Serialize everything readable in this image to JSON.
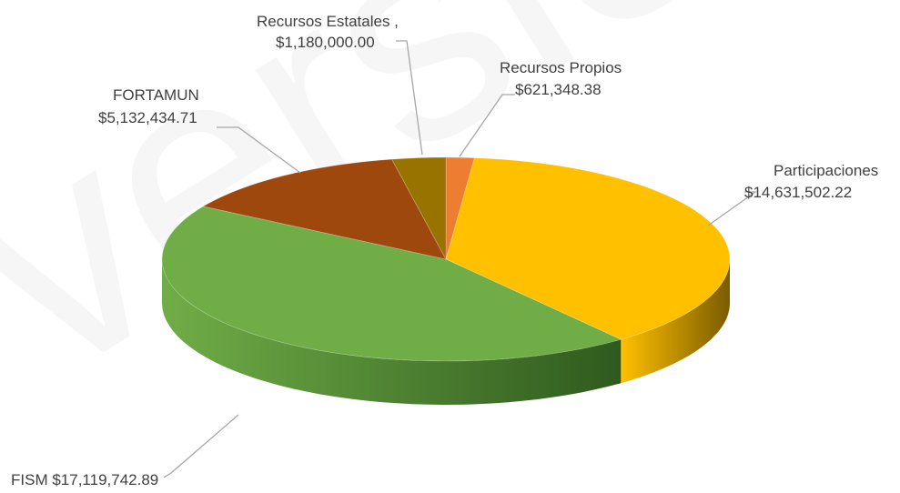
{
  "watermark": "versión",
  "chart_data": {
    "type": "pie",
    "style": "3d",
    "slices": [
      {
        "name": "Recursos Propios",
        "value": 621348.38,
        "value_label": "$621,348.38",
        "color": "#ED7D31",
        "dark": "#8a4516"
      },
      {
        "name": "Participaciones",
        "value": 14631502.22,
        "value_label": "$14,631,502.22",
        "color": "#FFC000",
        "dark": "#7a5c00"
      },
      {
        "name": "FISM",
        "value": 17119742.89,
        "value_label": "$17,119,742.89",
        "color": "#70AD47",
        "dark": "#2f5a1e"
      },
      {
        "name": "FORTAMUN",
        "value": 5132434.71,
        "value_label": "$5,132,434.71",
        "color": "#9E480E",
        "dark": "#5a2806"
      },
      {
        "name": "Recursos Estatales ,",
        "value": 1180000.0,
        "value_label": "$1,180,000.00",
        "color": "#997300",
        "dark": "#5a4400"
      }
    ]
  }
}
